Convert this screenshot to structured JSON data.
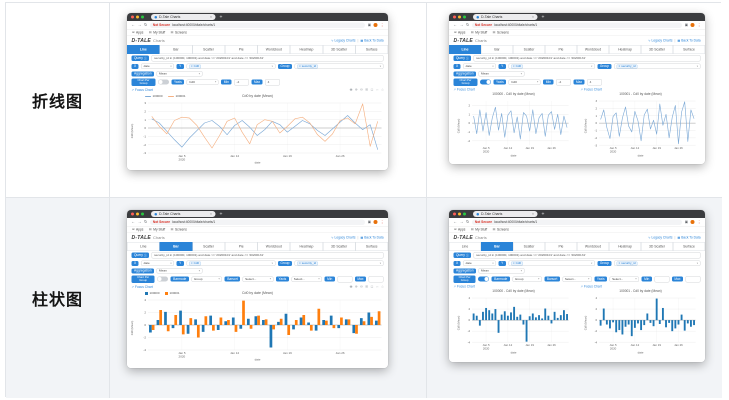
{
  "labels": [
    "折线图",
    "柱状图"
  ],
  "colors": {
    "accent": "#2a84d8",
    "row2_bg": "#f2f4f7",
    "grid_border": "#e2e5e9",
    "not_secure_red": "#d93025",
    "line_blue": "#7ca9d6",
    "line_orange": "#f5b183",
    "bar_blue": "#1f77b4",
    "bar_orange": "#ff7f0e"
  },
  "icons": {
    "back": "←",
    "forward": "→",
    "reload": "↻",
    "extensions": "▣",
    "menu": "⋮",
    "apps": "⊞",
    "folder": "▤",
    "legacy_charts": "∿",
    "back_to_data": "▦",
    "focus": "↗",
    "info": "ⓘ",
    "caret": "▾",
    "tag_remove": "×",
    "modebar": [
      "◉",
      "⊕",
      "⊖",
      "⊞",
      "◻",
      "↔",
      "⌂"
    ]
  },
  "browser": {
    "tab_title": "D-Tale Charts",
    "new_tab": "+",
    "not_secure": "Not Secure",
    "url": "localhost:40000/dtale/charts/1",
    "bookmarks": [
      "Apps",
      "My Stuff",
      "Screens"
    ],
    "logo": "D-TALE",
    "app_title": "Charts",
    "header_links": [
      {
        "icon": "legacy_charts",
        "label": "Legacy Charts"
      },
      {
        "icon": "back_to_data",
        "label": "Back To Data"
      }
    ],
    "chart_tabs": [
      "Line",
      "Bar",
      "Scatter",
      "Pie",
      "Wordcloud",
      "Heatmap",
      "3D Scatter",
      "Surface"
    ],
    "query_label": "Query",
    "query_value": "security_id in (100000, 100001) and date >= '20200101' and date <= '20200131'",
    "x_label": "X",
    "x_value": "date",
    "y_label": "Y",
    "y_tag": "Cd0",
    "group_label": "Group",
    "group_tag": "security_id",
    "agg_label": "Aggregation",
    "agg_value": "Mean",
    "chart_per_group_label": "Chart Per Group",
    "yaxis_label": "Yaxis",
    "yaxis_value": "Cd0",
    "min_label": "Min",
    "min_value": "-4",
    "max_label": "Max",
    "max_value": "4",
    "barmode_label": "Barmode",
    "barmode_value": "Group",
    "barsort_label": "Barsort",
    "barsort_value": "Select...",
    "yaxis_select_value": "Select...",
    "focus_chart": "Focus Chart"
  },
  "cards": [
    {
      "key": "top-mid",
      "active_tab": "Line",
      "controls": "line",
      "toggle_on": false,
      "view": "combined",
      "chart_refs": [
        0
      ]
    },
    {
      "key": "top-right",
      "active_tab": "Line",
      "controls": "line",
      "toggle_on": true,
      "view": "per_group",
      "chart_refs": [
        1,
        2
      ]
    },
    {
      "key": "bot-mid",
      "active_tab": "Bar",
      "controls": "bar",
      "toggle_on": false,
      "view": "combined",
      "chart_refs": [
        3
      ]
    },
    {
      "key": "bot-right",
      "active_tab": "Bar",
      "controls": "bar",
      "toggle_on": true,
      "view": "per_group",
      "chart_refs": [
        4,
        5
      ]
    }
  ],
  "chart_data": {
    "dates": [
      "2020-01-01",
      "2020-01-02",
      "2020-01-03",
      "2020-01-04",
      "2020-01-05",
      "2020-01-06",
      "2020-01-07",
      "2020-01-08",
      "2020-01-09",
      "2020-01-10",
      "2020-01-11",
      "2020-01-12",
      "2020-01-13",
      "2020-01-14",
      "2020-01-15",
      "2020-01-16",
      "2020-01-17",
      "2020-01-18",
      "2020-01-19",
      "2020-01-20",
      "2020-01-21",
      "2020-01-22",
      "2020-01-23",
      "2020-01-24",
      "2020-01-25",
      "2020-01-26",
      "2020-01-27",
      "2020-01-28",
      "2020-01-29",
      "2020-01-30",
      "2020-01-31"
    ],
    "xlabel": "date",
    "ylabel": "Cd0 (Mean)",
    "xticks": [
      {
        "index": 4,
        "lines": [
          "Jan 5",
          "2020"
        ]
      },
      {
        "index": 11,
        "lines": [
          "Jan 12"
        ]
      },
      {
        "index": 18,
        "lines": [
          "Jan 19"
        ]
      },
      {
        "index": 25,
        "lines": [
          "Jan 26"
        ]
      }
    ],
    "charts": [
      {
        "type": "line",
        "title": "Cd0 by date (Mean)",
        "legend_position": "top-left",
        "ylim": [
          -3,
          3
        ],
        "yticks": [
          3,
          2,
          1,
          0,
          -1,
          -2,
          -3
        ],
        "series": [
          {
            "name": "100000",
            "color": "#7ca9d6",
            "values": [
              1.1,
              0.6,
              -0.4,
              -1.4,
              -2.3,
              -1.2,
              -0.3,
              0.6,
              0.9,
              0.2,
              -0.8,
              0.3,
              0.9,
              0.1,
              -0.9,
              -0.2,
              0.8,
              0.4,
              -0.5,
              0.2,
              0.9,
              0.5,
              -0.3,
              -0.9,
              -0.1,
              0.7,
              1.5,
              0.6,
              -0.2,
              0.4,
              -2.6
            ]
          },
          {
            "name": "100001",
            "color": "#f5b183",
            "values": [
              1.4,
              0.2,
              -0.7,
              0.9,
              1.3,
              1.2,
              0.3,
              -1.1,
              -2.4,
              -0.9,
              0.8,
              1.2,
              -0.5,
              -1.9,
              0.4,
              1.0,
              0.8,
              -0.6,
              0.2,
              1.1,
              1.3,
              0.6,
              -0.8,
              -1.6,
              -0.7,
              0.9,
              1.2,
              0.5,
              2.9,
              -2.2,
              0.8
            ]
          }
        ]
      },
      {
        "type": "line",
        "title": "100000 - Cd0 by date (Mean)",
        "ylim": [
          -2.5,
          2.5
        ],
        "yticks": [
          2,
          1,
          0,
          -1,
          -2
        ],
        "series": [
          {
            "name": "100000",
            "color": "#7ca9d6",
            "values": [
              0.8,
              -1.2,
              1.5,
              -0.9,
              1.2,
              -1.4,
              0.6,
              1.8,
              -0.8,
              1.1,
              -1.6,
              0.9,
              1.4,
              -1.1,
              0.7,
              -1.8,
              1.2,
              0.8,
              -0.9,
              1.5,
              -1.2,
              0.6,
              1.1,
              -1.5,
              0.9,
              1.3,
              -0.7,
              1.0,
              -1.3,
              0.8,
              -0.5
            ]
          }
        ]
      },
      {
        "type": "line",
        "title": "100001 - Cd0 by date (Mean)",
        "ylim": [
          -3,
          3
        ],
        "yticks": [
          3,
          2,
          1,
          0,
          -1,
          -2,
          -3
        ],
        "series": [
          {
            "name": "100001",
            "color": "#7ca9d6",
            "values": [
              0.5,
              1.8,
              -0.6,
              -2.1,
              0.9,
              1.4,
              -1.8,
              0.7,
              2.2,
              -0.4,
              -1.2,
              1.6,
              0.3,
              -2.4,
              1.1,
              1.9,
              -0.8,
              0.4,
              -1.5,
              2.6,
              -0.3,
              1.2,
              -2.0,
              0.8,
              2.4,
              -2.8,
              1.5,
              2.9,
              -2.5,
              1.8,
              0.6
            ]
          }
        ]
      },
      {
        "type": "bar",
        "title": "Cd0 by date (Mean)",
        "legend_position": "top-left",
        "ylim": [
          -4,
          4
        ],
        "yticks": [
          4,
          2,
          0,
          -2,
          -4
        ],
        "series": [
          {
            "name": "100000",
            "color": "#1f77b4",
            "values": [
              -1.2,
              0.8,
              2.1,
              -0.5,
              2.3,
              -1.4,
              0.9,
              -1.1,
              1.5,
              -0.8,
              0.6,
              1.2,
              -0.6,
              1.0,
              1.4,
              0.8,
              -3.6,
              0.5,
              1.8,
              -0.7,
              1.2,
              0.4,
              -0.9,
              0.8,
              1.5,
              -0.5,
              0.9,
              -1.3,
              1.1,
              2.0,
              0.7
            ]
          },
          {
            "name": "100001",
            "color": "#ff7f0e",
            "values": [
              -0.8,
              2.4,
              -1.0,
              1.6,
              -1.5,
              1.1,
              -2.0,
              1.4,
              -0.9,
              1.2,
              0.8,
              -1.1,
              3.9,
              -0.6,
              1.5,
              0.9,
              -0.7,
              1.0,
              -1.6,
              0.8,
              1.6,
              -0.9,
              2.6,
              0.7,
              -0.5,
              1.2,
              0.9,
              -1.4,
              0.6,
              1.3,
              2.2
            ]
          }
        ]
      },
      {
        "type": "bar",
        "title": "100000 - Cd0 by date (Mean)",
        "ylim": [
          -4,
          4
        ],
        "yticks": [
          4,
          2,
          0,
          -2,
          -4
        ],
        "series": [
          {
            "name": "100000",
            "color": "#1f77b4",
            "values": [
              1.2,
              0.8,
              -1.0,
              1.5,
              2.2,
              1.8,
              1.2,
              2.0,
              -2.3,
              1.0,
              1.6,
              0.8,
              1.4,
              2.4,
              0.6,
              1.0,
              -0.8,
              -3.9,
              0.7,
              1.2,
              0.5,
              0.9,
              0.3,
              2.1,
              0.8,
              -0.6,
              1.5,
              0.4,
              0.9,
              1.8,
              1.1
            ]
          }
        ]
      },
      {
        "type": "bar",
        "title": "100001 - Cd0 by date (Mean)",
        "ylim": [
          -4,
          4
        ],
        "yticks": [
          4,
          2,
          0,
          -2,
          -4
        ],
        "series": [
          {
            "name": "100001",
            "color": "#1f77b4",
            "values": [
              -1.0,
              2.1,
              -0.8,
              -1.5,
              -0.4,
              -2.2,
              -1.8,
              -2.6,
              -1.2,
              -0.8,
              -2.9,
              -1.4,
              -0.6,
              -1.8,
              -0.9,
              1.2,
              -0.5,
              -1.1,
              3.9,
              -0.7,
              2.2,
              -1.3,
              -0.5,
              -2.0,
              -1.5,
              -0.8,
              1.0,
              -1.9,
              -0.6,
              -1.2,
              -0.9
            ]
          }
        ]
      }
    ]
  }
}
